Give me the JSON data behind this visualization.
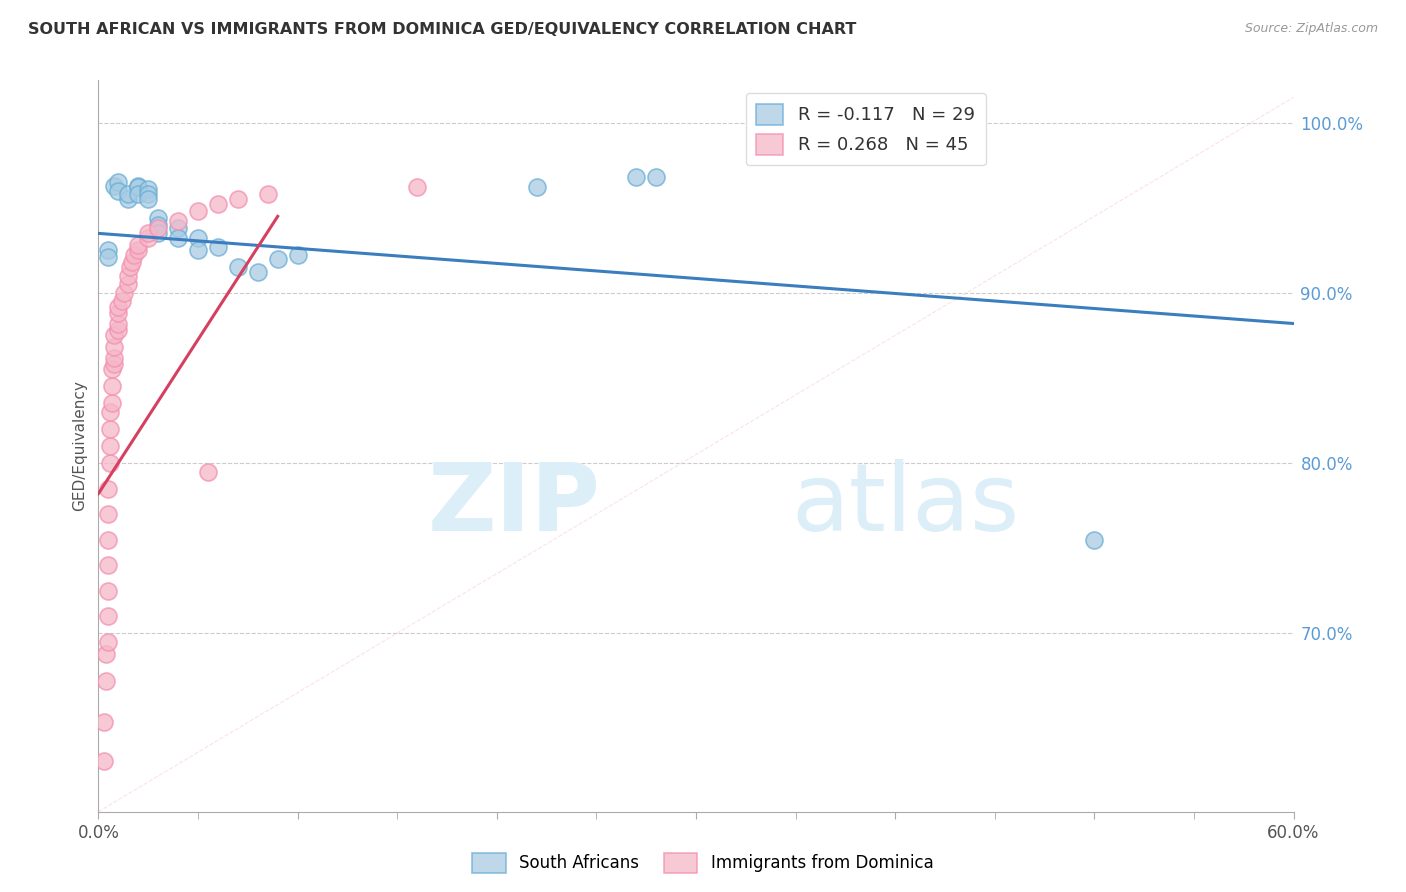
{
  "title": "SOUTH AFRICAN VS IMMIGRANTS FROM DOMINICA GED/EQUIVALENCY CORRELATION CHART",
  "source": "Source: ZipAtlas.com",
  "ylabel": "GED/Equivalency",
  "xmin": 0.0,
  "xmax": 0.6,
  "ymin": 0.595,
  "ymax": 1.025,
  "xticks": [
    0.0,
    0.1,
    0.2,
    0.3,
    0.4,
    0.5,
    0.6
  ],
  "ytick_right": [
    0.7,
    0.8,
    0.9,
    1.0
  ],
  "ytick_right_labels": [
    "70.0%",
    "80.0%",
    "90.0%",
    "100.0%"
  ],
  "blue_color": "#a8cce4",
  "pink_color": "#f4b8c8",
  "blue_edge_color": "#6baed6",
  "pink_edge_color": "#f48fb1",
  "blue_line_color": "#3a7ebf",
  "pink_line_color": "#d64060",
  "legend_blue_R": "R = -0.117",
  "legend_blue_N": "N = 29",
  "legend_pink_R": "R = 0.268",
  "legend_pink_N": "N = 45",
  "legend_blue_label": "South Africans",
  "legend_pink_label": "Immigrants from Dominica",
  "watermark_zip": "ZIP",
  "watermark_atlas": "atlas",
  "blue_scatter_x": [
    0.005,
    0.005,
    0.008,
    0.01,
    0.01,
    0.015,
    0.015,
    0.02,
    0.02,
    0.02,
    0.025,
    0.025,
    0.025,
    0.03,
    0.03,
    0.03,
    0.04,
    0.04,
    0.05,
    0.05,
    0.06,
    0.07,
    0.08,
    0.09,
    0.1,
    0.22,
    0.27,
    0.28,
    0.5
  ],
  "blue_scatter_y": [
    0.925,
    0.921,
    0.963,
    0.965,
    0.96,
    0.955,
    0.958,
    0.963,
    0.962,
    0.958,
    0.961,
    0.958,
    0.955,
    0.944,
    0.94,
    0.935,
    0.938,
    0.932,
    0.932,
    0.925,
    0.927,
    0.915,
    0.912,
    0.92,
    0.922,
    0.962,
    0.968,
    0.968,
    0.755
  ],
  "pink_scatter_x": [
    0.003,
    0.003,
    0.004,
    0.004,
    0.005,
    0.005,
    0.005,
    0.005,
    0.005,
    0.005,
    0.005,
    0.006,
    0.006,
    0.006,
    0.006,
    0.007,
    0.007,
    0.007,
    0.008,
    0.008,
    0.008,
    0.008,
    0.01,
    0.01,
    0.01,
    0.01,
    0.012,
    0.013,
    0.015,
    0.015,
    0.016,
    0.017,
    0.018,
    0.02,
    0.02,
    0.025,
    0.025,
    0.03,
    0.04,
    0.05,
    0.055,
    0.06,
    0.07,
    0.085,
    0.16
  ],
  "pink_scatter_y": [
    0.625,
    0.648,
    0.672,
    0.688,
    0.695,
    0.71,
    0.725,
    0.74,
    0.755,
    0.77,
    0.785,
    0.8,
    0.81,
    0.82,
    0.83,
    0.835,
    0.845,
    0.855,
    0.858,
    0.862,
    0.868,
    0.875,
    0.878,
    0.882,
    0.888,
    0.892,
    0.895,
    0.9,
    0.905,
    0.91,
    0.915,
    0.918,
    0.922,
    0.925,
    0.928,
    0.932,
    0.935,
    0.938,
    0.942,
    0.948,
    0.795,
    0.952,
    0.955,
    0.958,
    0.962
  ],
  "blue_trend_x": [
    0.0,
    0.6
  ],
  "blue_trend_y": [
    0.935,
    0.882
  ],
  "pink_trend_x": [
    0.0,
    0.09
  ],
  "pink_trend_y": [
    0.782,
    0.945
  ],
  "diag_line_x": [
    0.0,
    0.6
  ],
  "diag_line_y": [
    0.595,
    1.015
  ]
}
